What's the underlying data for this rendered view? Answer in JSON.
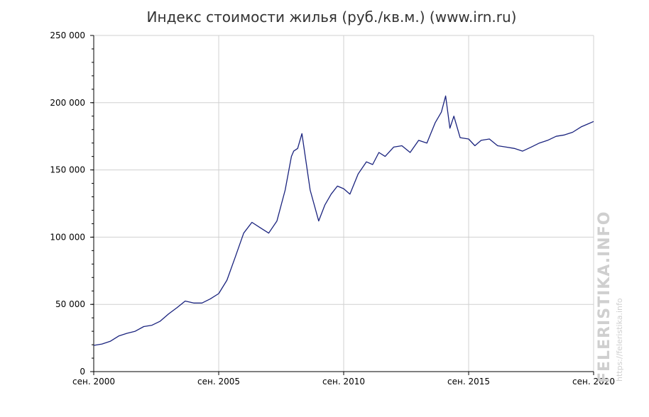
{
  "chart_data": {
    "type": "line",
    "title": "Индекс стоимости жилья (руб./кв.м.) (www.irn.ru)",
    "xlabel": "",
    "ylabel": "",
    "x_start": 2000.67,
    "x_end": 2020.67,
    "ylim": [
      0,
      250000
    ],
    "y_ticks": [
      {
        "value": 0,
        "label": "0"
      },
      {
        "value": 50000,
        "label": "50 000"
      },
      {
        "value": 100000,
        "label": "100 000"
      },
      {
        "value": 150000,
        "label": "150 000"
      },
      {
        "value": 200000,
        "label": "200 000"
      },
      {
        "value": 250000,
        "label": "250 000"
      }
    ],
    "x_ticks": [
      {
        "value": 2000.67,
        "label": "сен. 2000"
      },
      {
        "value": 2005.67,
        "label": "сен. 2005"
      },
      {
        "value": 2010.67,
        "label": "сен. 2010"
      },
      {
        "value": 2015.67,
        "label": "сен. 2015"
      },
      {
        "value": 2020.67,
        "label": "сен. 2020"
      }
    ],
    "grid": true,
    "line_color": "#1a237e",
    "series": [
      {
        "x": [
          2000.67,
          2001.0,
          2001.33,
          2001.67,
          2002.0,
          2002.33,
          2002.67,
          2003.0,
          2003.33,
          2003.67,
          2004.0,
          2004.33,
          2004.67,
          2005.0,
          2005.33,
          2005.67,
          2006.0,
          2006.33,
          2006.67,
          2007.0,
          2007.33,
          2007.67,
          2008.0,
          2008.33,
          2008.58,
          2008.67,
          2008.83,
          2009.0,
          2009.33,
          2009.67,
          2009.92,
          2010.17,
          2010.42,
          2010.67,
          2010.92,
          2011.25,
          2011.58,
          2011.83,
          2012.08,
          2012.33,
          2012.67,
          2013.0,
          2013.33,
          2013.67,
          2014.0,
          2014.33,
          2014.58,
          2014.75,
          2014.92,
          2015.08,
          2015.33,
          2015.67,
          2015.92,
          2016.17,
          2016.5,
          2016.83,
          2017.17,
          2017.5,
          2017.83,
          2018.17,
          2018.5,
          2018.83,
          2019.17,
          2019.5,
          2019.83,
          2020.17,
          2020.42,
          2020.67
        ],
        "values": [
          19500,
          20500,
          22500,
          26500,
          28500,
          30000,
          33500,
          34500,
          37500,
          43000,
          47500,
          52500,
          51000,
          51000,
          54000,
          58000,
          68000,
          85000,
          103000,
          111000,
          107000,
          103000,
          112000,
          135000,
          160000,
          164000,
          166000,
          177000,
          135000,
          112000,
          124000,
          132000,
          138000,
          136000,
          132000,
          147000,
          156000,
          154000,
          163000,
          160000,
          167000,
          168000,
          163000,
          172000,
          170000,
          185000,
          193000,
          205000,
          181000,
          190000,
          174000,
          173000,
          168000,
          172000,
          173000,
          168000,
          167000,
          166000,
          164000,
          167000,
          170000,
          172000,
          175000,
          176000,
          178000,
          182000,
          184000,
          186000
        ]
      }
    ]
  },
  "watermark": {
    "main": "FELERISTIKA.INFO",
    "sub": "https://feleristika.info"
  }
}
